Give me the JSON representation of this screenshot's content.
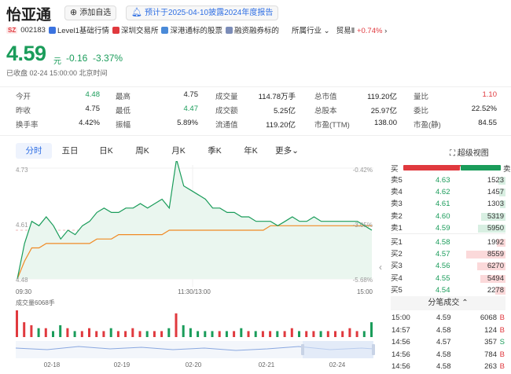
{
  "stock": {
    "name": "怡亚通",
    "market": "SZ",
    "code": "002183",
    "price": "4.59",
    "unit": "元",
    "change": "-0.16",
    "change_pct": "-3.37%",
    "status": "已收盘 02-24 15:00:00 北京时间"
  },
  "header": {
    "add_watch": "添加自选",
    "forecast": "预计于2025-04-10披露2024年度报告"
  },
  "tags": {
    "level1": "Level1基础行情",
    "exchange": "深圳交易所",
    "connect": "深港通标的股票",
    "margin": "融资融券标的",
    "industry": "所属行业",
    "sector": "贸易Ⅱ",
    "sector_chg": "+0.74%"
  },
  "stats": [
    {
      "k": "今开",
      "v": "4.48",
      "c": "green"
    },
    {
      "k": "最高",
      "v": "4.75",
      "c": ""
    },
    {
      "k": "成交量",
      "v": "114.78万手",
      "c": ""
    },
    {
      "k": "总市值",
      "v": "119.20亿",
      "c": ""
    },
    {
      "k": "量比",
      "v": "1.10",
      "c": "red"
    },
    {
      "k": "昨收",
      "v": "4.75",
      "c": ""
    },
    {
      "k": "最低",
      "v": "4.47",
      "c": "green"
    },
    {
      "k": "成交额",
      "v": "5.25亿",
      "c": ""
    },
    {
      "k": "总股本",
      "v": "25.97亿",
      "c": ""
    },
    {
      "k": "委比",
      "v": "22.52%",
      "c": ""
    },
    {
      "k": "换手率",
      "v": "4.42%",
      "c": ""
    },
    {
      "k": "振幅",
      "v": "5.89%",
      "c": ""
    },
    {
      "k": "流通值",
      "v": "119.20亿",
      "c": ""
    },
    {
      "k": "市盈(TTM)",
      "v": "138.00",
      "c": ""
    },
    {
      "k": "市盈(静)",
      "v": "84.55",
      "c": ""
    }
  ],
  "tabs": [
    "分时",
    "五日",
    "日K",
    "周K",
    "月K",
    "季K",
    "年K",
    "更多"
  ],
  "super_view": "超级视图",
  "chart_labels": {
    "y_top": "4.73",
    "y_mid": "4.61",
    "y_bot": "4.48",
    "pct_top": "-0.42%",
    "pct_mid": "-3.05%",
    "pct_bot": "-5.68%",
    "t_start": "09:30",
    "t_mid": "11:30/13:00",
    "t_end": "15:00",
    "volume_label": "成交量6068手",
    "dates": [
      "02-18",
      "02-19",
      "02-20",
      "02-21",
      "02-24"
    ]
  },
  "chart_data": {
    "type": "line",
    "x_range": [
      "09:30",
      "15:00"
    ],
    "ylim": [
      4.48,
      4.73
    ],
    "prev_close": 4.75,
    "series": [
      {
        "values": [
          4.48,
          4.56,
          4.61,
          4.6,
          4.62,
          4.6,
          4.57,
          4.59,
          4.58,
          4.6,
          4.61,
          4.63,
          4.64,
          4.63,
          4.63,
          4.64,
          4.64,
          4.65,
          4.64,
          4.65,
          4.66,
          4.64,
          4.75,
          4.69,
          4.68,
          4.67,
          4.66,
          4.64,
          4.64,
          4.63,
          4.63,
          4.62,
          4.62,
          4.61,
          4.61,
          4.61,
          4.6,
          4.61,
          4.62,
          4.61,
          4.61,
          4.62,
          4.61,
          4.61,
          4.61,
          4.61,
          4.61,
          4.61,
          4.6,
          4.59
        ]
      },
      {
        "values": [
          4.48,
          4.52,
          4.55,
          4.55,
          4.56,
          4.56,
          4.56,
          4.56,
          4.56,
          4.56,
          4.56,
          4.57,
          4.57,
          4.57,
          4.58,
          4.58,
          4.58,
          4.58,
          4.58,
          4.58,
          4.58,
          4.59,
          4.59,
          4.59,
          4.59,
          4.59,
          4.59,
          4.59,
          4.59,
          4.59,
          4.59,
          4.59,
          4.59,
          4.59,
          4.59,
          4.6,
          4.6,
          4.6,
          4.6,
          4.6,
          4.6,
          4.6,
          4.6,
          4.6,
          4.6,
          4.6,
          4.6,
          4.6,
          4.6,
          4.6
        ]
      }
    ],
    "volumes": [
      9,
      5,
      4,
      3,
      3,
      2,
      4,
      3,
      2,
      2,
      3,
      2,
      2,
      3,
      2,
      2,
      3,
      2,
      2,
      2,
      2,
      3,
      8,
      4,
      3,
      2,
      2,
      2,
      2,
      2,
      2,
      3,
      2,
      2,
      2,
      2,
      2,
      2,
      3,
      2,
      2,
      2,
      2,
      2,
      2,
      2,
      3,
      2,
      2,
      5
    ]
  },
  "orderbook": {
    "sell_label": "买",
    "sell_label_right": "卖",
    "asks": [
      {
        "label": "卖5",
        "price": "4.63",
        "vol": "1523",
        "ratio": 0.18
      },
      {
        "label": "卖4",
        "price": "4.62",
        "vol": "1457",
        "ratio": 0.17
      },
      {
        "label": "卖3",
        "price": "4.61",
        "vol": "1303",
        "ratio": 0.15
      },
      {
        "label": "卖2",
        "price": "4.60",
        "vol": "5319",
        "ratio": 0.62
      },
      {
        "label": "卖1",
        "price": "4.59",
        "vol": "5950",
        "ratio": 0.7
      }
    ],
    "bids": [
      {
        "label": "买1",
        "price": "4.58",
        "vol": "1992",
        "ratio": 0.23
      },
      {
        "label": "买2",
        "price": "4.57",
        "vol": "8559",
        "ratio": 1.0
      },
      {
        "label": "买3",
        "price": "4.56",
        "vol": "6270",
        "ratio": 0.73
      },
      {
        "label": "买4",
        "price": "4.55",
        "vol": "5494",
        "ratio": 0.64
      },
      {
        "label": "买5",
        "price": "4.54",
        "vol": "2278",
        "ratio": 0.27
      }
    ]
  },
  "trades": {
    "title": "分笔成交",
    "rows": [
      {
        "time": "15:00",
        "price": "4.59",
        "vol": "6068",
        "side": "B"
      },
      {
        "time": "14:57",
        "price": "4.58",
        "vol": "124",
        "side": "B"
      },
      {
        "time": "14:56",
        "price": "4.57",
        "vol": "357",
        "side": "S"
      },
      {
        "time": "14:56",
        "price": "4.58",
        "vol": "784",
        "side": "B"
      },
      {
        "time": "14:56",
        "price": "4.58",
        "vol": "263",
        "side": "B"
      }
    ]
  }
}
